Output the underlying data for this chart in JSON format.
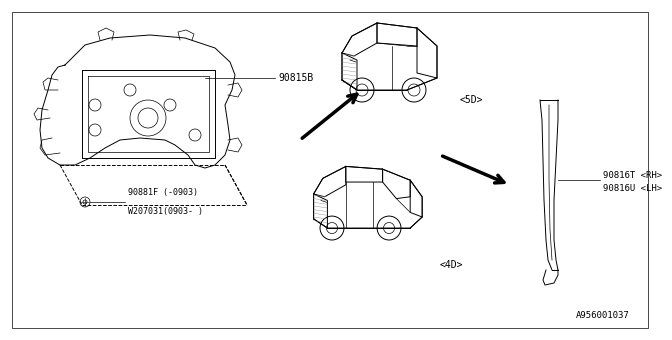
{
  "background_color": "#ffffff",
  "line_color": "#000000",
  "gray_color": "#aaaaaa",
  "thin_color": "#666666",
  "diagram_id": "A956001037",
  "label_90815B": "90815B",
  "label_90881F_line1": "90881F (-0903)",
  "label_90881F_line2": "W207031(0903- )",
  "label_5D": "<5D>",
  "label_4D": "<4D>",
  "label_90816T": "90816T <RH>",
  "label_90816U": "90816U <LH>"
}
